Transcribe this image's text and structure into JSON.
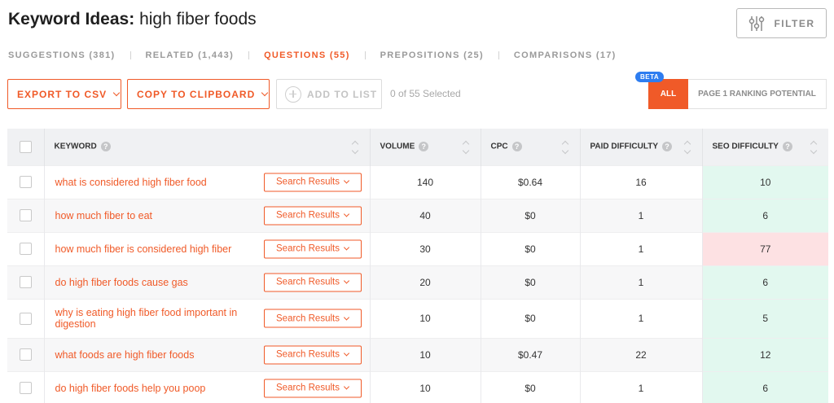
{
  "header": {
    "title_lead": "Keyword Ideas:",
    "title_term": "high fiber foods",
    "filter_label": "FILTER"
  },
  "tabs": [
    {
      "label": "SUGGESTIONS (381)",
      "active": false
    },
    {
      "label": "RELATED (1,443)",
      "active": false
    },
    {
      "label": "QUESTIONS (55)",
      "active": true
    },
    {
      "label": "PREPOSITIONS (25)",
      "active": false
    },
    {
      "label": "COMPARISONS (17)",
      "active": false
    }
  ],
  "toolbar": {
    "export_label": "EXPORT TO CSV",
    "copy_label": "COPY TO CLIPBOARD",
    "add_label": "ADD TO LIST",
    "selected_text": "0 of 55 Selected",
    "beta_label": "BETA",
    "all_label": "ALL",
    "page1_label": "PAGE 1 RANKING POTENTIAL"
  },
  "table": {
    "columns": {
      "keyword": "KEYWORD",
      "volume": "VOLUME",
      "cpc": "CPC",
      "paid": "PAID DIFFICULTY",
      "seo": "SEO DIFFICULTY"
    },
    "search_results_label": "Search Results",
    "rows": [
      {
        "keyword": "what is considered high fiber food",
        "volume": "140",
        "cpc": "$0.64",
        "paid": "16",
        "seo": "10"
      },
      {
        "keyword": "how much fiber to eat",
        "volume": "40",
        "cpc": "$0",
        "paid": "1",
        "seo": "6"
      },
      {
        "keyword": "how much fiber is considered high fiber",
        "volume": "30",
        "cpc": "$0",
        "paid": "1",
        "seo": "77"
      },
      {
        "keyword": "do high fiber foods cause gas",
        "volume": "20",
        "cpc": "$0",
        "paid": "1",
        "seo": "6"
      },
      {
        "keyword": "why is eating high fiber food important in digestion",
        "volume": "10",
        "cpc": "$0",
        "paid": "1",
        "seo": "5"
      },
      {
        "keyword": "what foods are high fiber foods",
        "volume": "10",
        "cpc": "$0.47",
        "paid": "22",
        "seo": "12"
      },
      {
        "keyword": "do high fiber foods help you poop",
        "volume": "10",
        "cpc": "$0",
        "paid": "1",
        "seo": "6"
      }
    ]
  },
  "colors": {
    "accent": "#f05a28",
    "beta": "#2e7df0",
    "seo_easy": "#e2f8ef",
    "seo_hard": "#fde1e3"
  }
}
